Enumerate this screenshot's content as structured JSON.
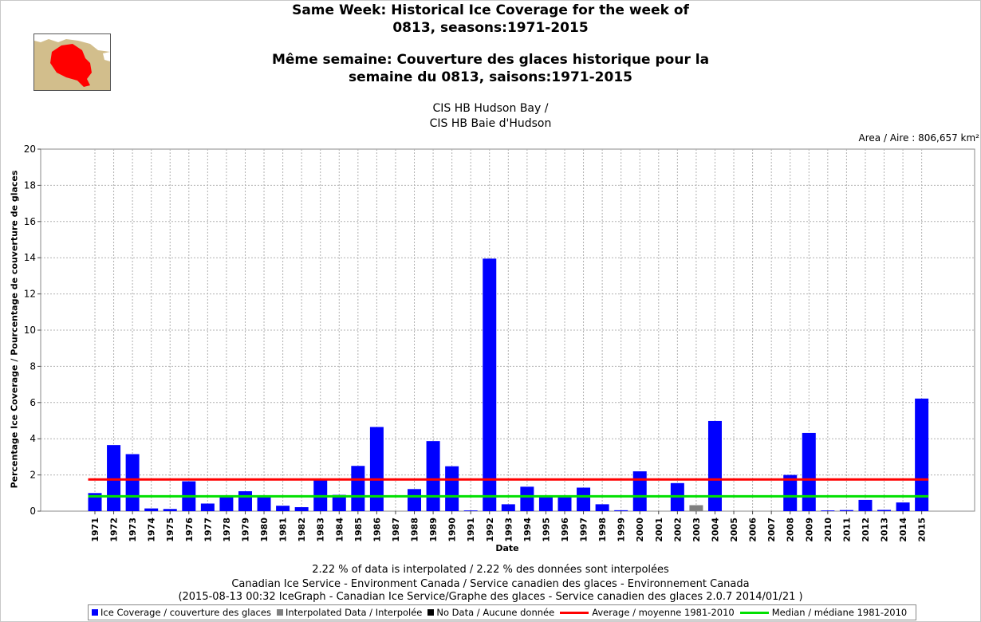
{
  "header": {
    "title_en_1": "Same Week: Historical Ice Coverage for the week of",
    "title_en_2": "0813, seasons:1971-2015",
    "title_fr_1": "Même semaine: Couverture des glaces historique pour la",
    "title_fr_2": "semaine du 0813, saisons:1971-2015",
    "region_1": "CIS HB Hudson Bay /",
    "region_2": "CIS HB Baie d'Hudson",
    "area": "Area / Aire : 806,657 km²"
  },
  "colors": {
    "ice": "#0000ff",
    "interpolated": "#808080",
    "nodata": "#000000",
    "average": "#ff0000",
    "median": "#00e000",
    "map_land": "#d2be8c",
    "map_region": "#ff0000",
    "grid": "#b0b0b0"
  },
  "chart_data": {
    "type": "bar",
    "xlabel": "Date",
    "ylabel": "Percentage Ice Coverage / Pourcentage de couverture de glaces",
    "ylim": [
      0,
      20
    ],
    "yticks": [
      0,
      2,
      4,
      6,
      8,
      10,
      12,
      14,
      16,
      18,
      20
    ],
    "grid": true,
    "categories": [
      "1971",
      "1972",
      "1973",
      "1974",
      "1975",
      "1976",
      "1977",
      "1978",
      "1979",
      "1980",
      "1981",
      "1982",
      "1983",
      "1984",
      "1985",
      "1986",
      "1987",
      "1988",
      "1989",
      "1990",
      "1991",
      "1992",
      "1993",
      "1994",
      "1995",
      "1996",
      "1997",
      "1998",
      "1999",
      "2000",
      "2001",
      "2002",
      "2003",
      "2004",
      "2005",
      "2006",
      "2007",
      "2008",
      "2009",
      "2010",
      "2011",
      "2012",
      "2013",
      "2014",
      "2015"
    ],
    "series": [
      {
        "name": "Ice Coverage / couverture des glaces",
        "values": [
          1.0,
          3.65,
          3.15,
          0.15,
          0.12,
          1.65,
          0.42,
          0.8,
          1.1,
          0.8,
          0.3,
          0.22,
          1.8,
          0.9,
          2.5,
          4.65,
          0,
          1.22,
          3.87,
          2.48,
          0.04,
          13.95,
          0.38,
          1.35,
          0.8,
          0.8,
          1.3,
          0.38,
          0.05,
          2.2,
          0,
          1.55,
          0,
          4.98,
          0,
          0,
          0,
          2.0,
          4.32,
          0.04,
          0.06,
          0.62,
          0.07,
          0.48,
          6.22
        ]
      },
      {
        "name": "Interpolated Data / Interpolée",
        "values": [
          0,
          0,
          0,
          0,
          0,
          0,
          0,
          0,
          0,
          0,
          0,
          0,
          0,
          0,
          0,
          0,
          0,
          0,
          0,
          0,
          0,
          0,
          0,
          0,
          0,
          0,
          0,
          0,
          0,
          0,
          0,
          0,
          0.33,
          0,
          0,
          0,
          0,
          0,
          0,
          0,
          0,
          0,
          0,
          0,
          0
        ]
      }
    ],
    "average": {
      "name": "Average / moyenne 1981-2010",
      "value": 1.75
    },
    "median": {
      "name": "Median / médiane 1981-2010",
      "value": 0.82
    }
  },
  "footer": {
    "line1": "2.22 % of data is interpolated / 2.22 % des données sont interpolées",
    "line2": "Canadian Ice Service - Environment Canada / Service canadien des glaces - Environnement Canada",
    "line3": "(2015-08-13 00:32 IceGraph - Canadian Ice Service/Graphe des glaces - Service canadien des glaces 2.0.7 2014/01/21 )"
  },
  "legend": {
    "ice": "Ice Coverage / couverture des glaces",
    "interp": "Interpolated Data / Interpolée",
    "nodata": "No Data / Aucune donnée",
    "avg": "Average / moyenne 1981-2010",
    "med": "Median / médiane 1981-2010"
  }
}
